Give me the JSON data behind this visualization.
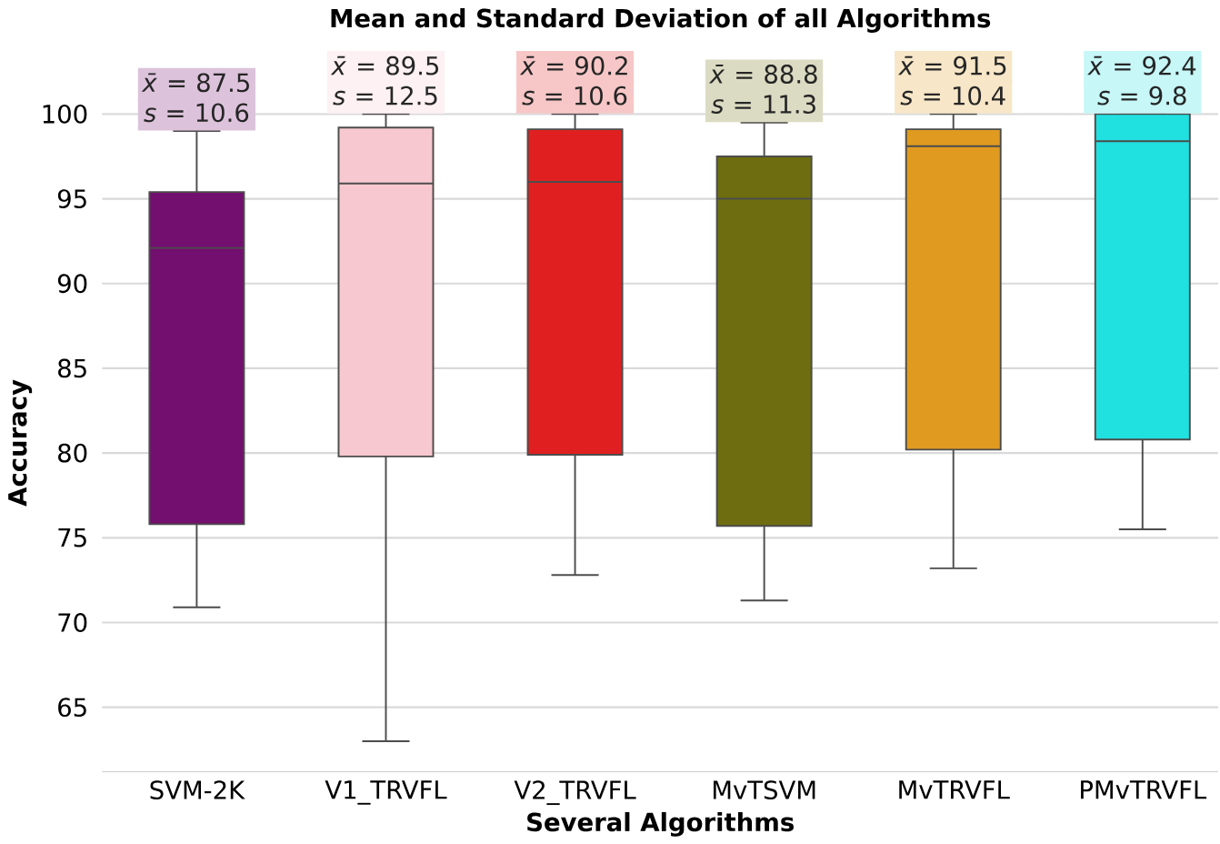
{
  "chart_data": {
    "type": "box",
    "title": "Mean and Standard Deviation of all Algorithms",
    "xlabel": "Several Algorithms",
    "ylabel": "Accuracy",
    "categories": [
      "SVM-2K",
      "V1_TRVFL",
      "V2_TRVFL",
      "MvTSVM",
      "MvTRVFL",
      "PMvTRVFL"
    ],
    "colors": [
      "#730f6e",
      "#f7c8d0",
      "#e02020",
      "#6e6e10",
      "#e09a20",
      "#20e0e0"
    ],
    "boxes": [
      {
        "low": 70.9,
        "q1": 75.8,
        "median": 92.1,
        "q3": 95.4,
        "high": 99.0
      },
      {
        "low": 63.0,
        "q1": 79.8,
        "median": 95.9,
        "q3": 99.2,
        "high": 100.0
      },
      {
        "low": 72.8,
        "q1": 79.9,
        "median": 96.0,
        "q3": 99.1,
        "high": 100.0
      },
      {
        "low": 71.3,
        "q1": 75.7,
        "median": 95.0,
        "q3": 97.5,
        "high": 99.5
      },
      {
        "low": 73.2,
        "q1": 80.2,
        "median": 98.1,
        "q3": 99.1,
        "high": 100.0
      },
      {
        "low": 75.5,
        "q1": 80.8,
        "median": 98.4,
        "q3": 100.0,
        "high": 100.0
      }
    ],
    "annotations": [
      {
        "text": "*x̄* = 87.5",
        "x": "SVM-2K",
        "y": 99.0
      },
      {
        "text": "*s* = 10.6",
        "x": "SVM-2K",
        "y": 99.0
      },
      {
        "text": "*x̄* = 89.5",
        "x": "V1_TRVFL",
        "y": 100.0
      },
      {
        "text": "*s* = 12.5",
        "x": "V1_TRVFL",
        "y": 100.0
      },
      {
        "text": "*x̄* = 90.2",
        "x": "V2_TRVFL",
        "y": 100.0
      },
      {
        "text": "*s* = 10.6",
        "x": "V2_TRVFL",
        "y": 100.0
      },
      {
        "text": "*x̄* = 88.8",
        "x": "MvTSVM",
        "y": 99.5
      },
      {
        "text": "*s* = 11.3",
        "x": "MvTSVM",
        "y": 99.5
      },
      {
        "text": "*x̄* = 91.5",
        "x": "MvTRVFL",
        "y": 100.0
      },
      {
        "text": "*s* = 10.4",
        "x": "MvTRVFL",
        "y": 100.0
      },
      {
        "text": "*x̄* = 92.4",
        "x": "PMvTRVFL",
        "y": 100.0
      },
      {
        "text": "*s* = 9.8",
        "x": "PMvTRVFL",
        "y": 100.0
      }
    ],
    "ylim": [
      61.2,
      100
    ],
    "yticks": [
      65,
      70,
      75,
      80,
      85,
      90,
      95,
      100
    ],
    "grid": "y"
  }
}
